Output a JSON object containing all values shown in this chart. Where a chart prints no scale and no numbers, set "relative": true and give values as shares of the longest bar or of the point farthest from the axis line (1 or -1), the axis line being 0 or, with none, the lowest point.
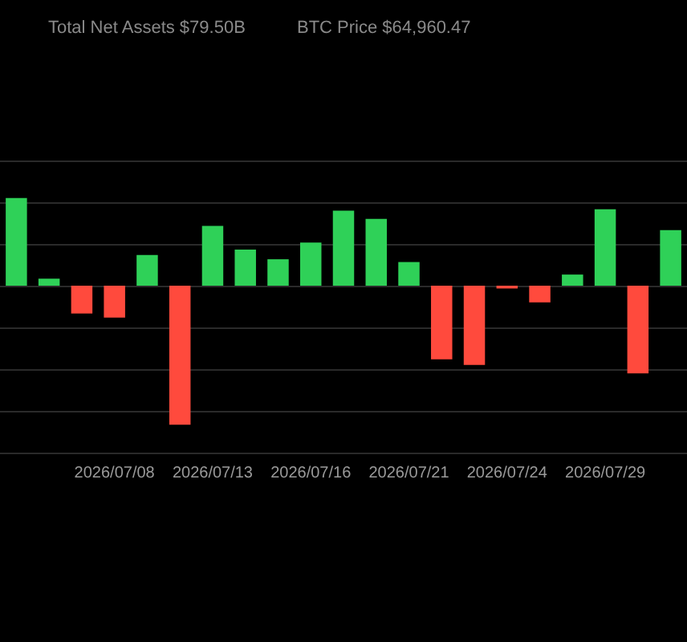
{
  "chart_data": {
    "type": "bar",
    "relative": true,
    "grid": "y",
    "annotations": [
      "Total Net Assets $79.50B",
      "BTC Price $64,960.47"
    ],
    "categories": [
      null,
      null,
      null,
      "2026/07/08",
      null,
      null,
      "2026/07/13",
      null,
      null,
      "2026/07/16",
      null,
      null,
      "2026/07/21",
      null,
      null,
      "2026/07/24",
      null,
      null,
      "2026/07/29",
      null,
      null
    ],
    "values": [
      0.63,
      0.05,
      -0.2,
      -0.23,
      0.22,
      -1,
      0.43,
      0.26,
      0.19,
      0.31,
      0.54,
      0.48,
      0.17,
      -0.53,
      -0.57,
      -0.02,
      -0.12,
      0.08,
      0.55,
      -0.63,
      0.4
    ],
    "colors": [
      "#2fd158",
      "#2fd158",
      "#ff4a3d",
      "#ff4a3d",
      "#2fd158",
      "#ff4a3d",
      "#2fd158",
      "#2fd158",
      "#2fd158",
      "#2fd158",
      "#2fd158",
      "#2fd158",
      "#2fd158",
      "#ff4a3d",
      "#ff4a3d",
      "#ff4a3d",
      "#ff4a3d",
      "#2fd158",
      "#2fd158",
      "#ff4a3d",
      "#2fd158"
    ]
  }
}
